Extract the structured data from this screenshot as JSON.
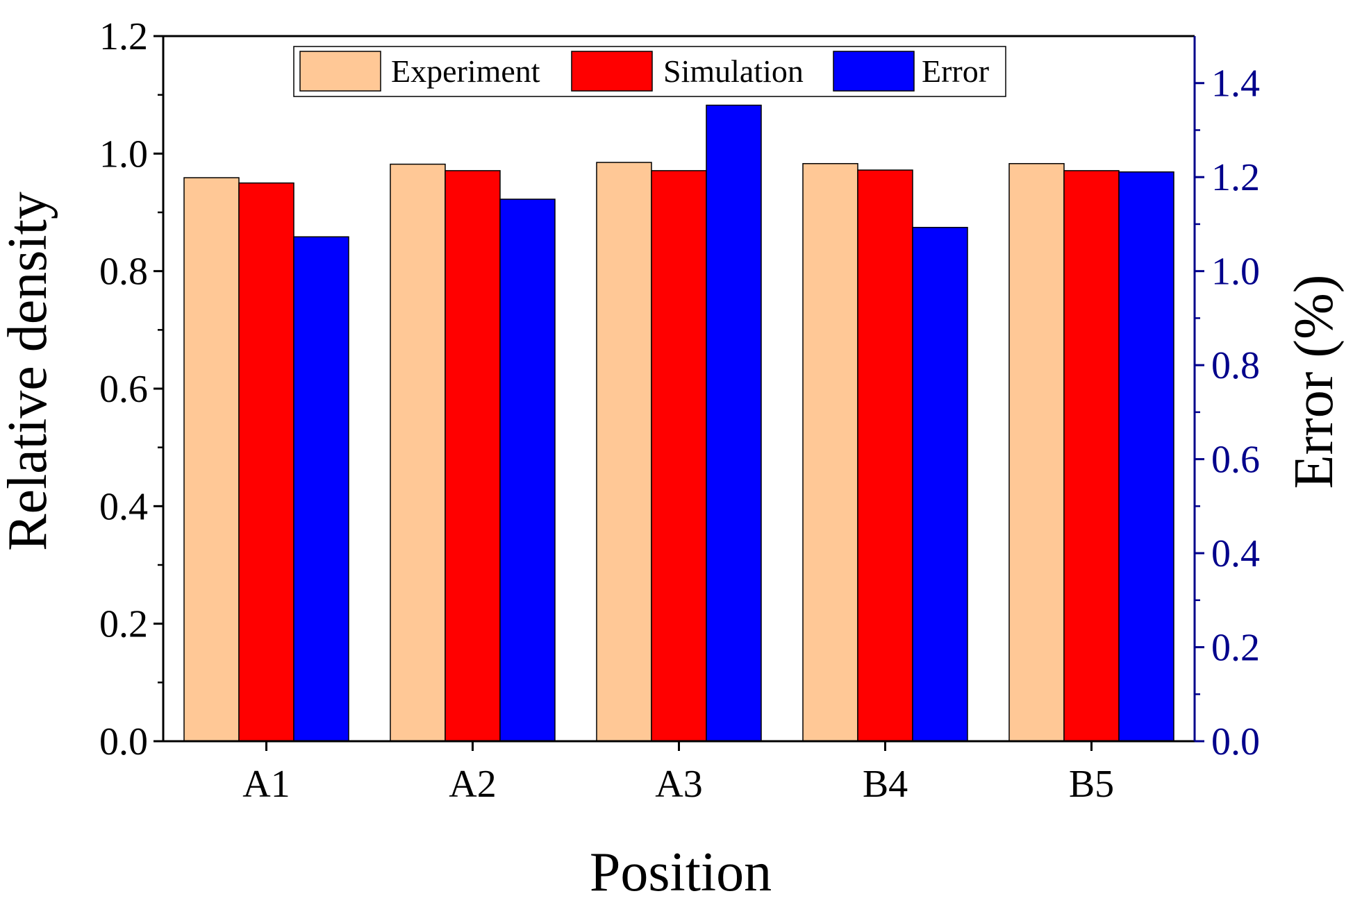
{
  "chart_data": {
    "type": "bar",
    "categories": [
      "A1",
      "A2",
      "A3",
      "B4",
      "B5"
    ],
    "series": [
      {
        "name": "Experiment",
        "axis": "left",
        "color": "#FFC896",
        "values": [
          0.959,
          0.982,
          0.985,
          0.983,
          0.983
        ]
      },
      {
        "name": "Simulation",
        "axis": "left",
        "color": "#FF0000",
        "values": [
          0.95,
          0.971,
          0.971,
          0.972,
          0.971
        ]
      },
      {
        "name": "Error",
        "axis": "right",
        "color": "#0000FF",
        "values": [
          1.073,
          1.153,
          1.353,
          1.093,
          1.211
        ]
      }
    ],
    "xlabel": "Position",
    "ylabel": "Relative density",
    "y2label": "Error (%)",
    "ylim": [
      0,
      1.2
    ],
    "y2lim": [
      0,
      1.5
    ],
    "yticks": [
      "0.0",
      "0.2",
      "0.4",
      "0.6",
      "0.8",
      "1.0",
      "1.2"
    ],
    "y2ticks": [
      "0.0",
      "0.2",
      "0.4",
      "0.6",
      "0.8",
      "1.0",
      "1.2",
      "1.4"
    ],
    "right_axis_color": "#00008B",
    "legend_position": "top-center",
    "grid": false
  }
}
